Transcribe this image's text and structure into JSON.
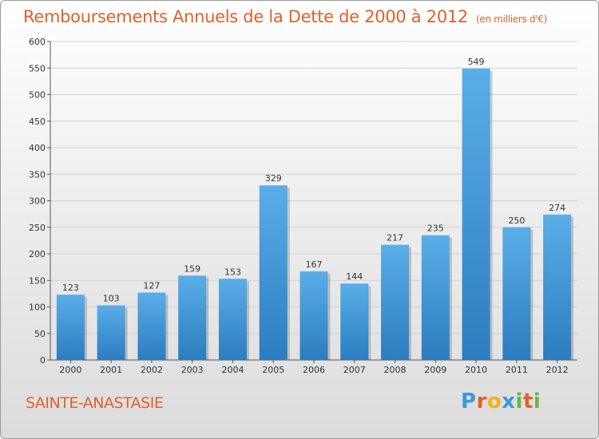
{
  "header": {
    "title": "Remboursements Annuels de la Dette de 2000 à 2012",
    "subtitle": "(en milliers d'€)"
  },
  "location": "SAINTE-ANASTASIE",
  "logo": {
    "text": "Proxiti",
    "letters": [
      {
        "ch": "P",
        "color": "#3a9ad9"
      },
      {
        "ch": "r",
        "color": "#e0612a"
      },
      {
        "ch": "o",
        "color": "#f0b419"
      },
      {
        "ch": "x",
        "color": "#3a9ad9"
      },
      {
        "ch": "i",
        "color": "#6cb33f"
      },
      {
        "ch": "t",
        "color": "#e0612a"
      },
      {
        "ch": "i",
        "color": "#6cb33f"
      }
    ]
  },
  "colors": {
    "bar_top": "#5aaee8",
    "bar_bottom": "#2b7dbf",
    "accent": "#e0612a",
    "grid": "#d0d0d0"
  },
  "chart_data": {
    "type": "bar",
    "categories": [
      "2000",
      "2001",
      "2002",
      "2003",
      "2004",
      "2005",
      "2006",
      "2007",
      "2008",
      "2009",
      "2010",
      "2011",
      "2012"
    ],
    "values": [
      123,
      103,
      127,
      159,
      153,
      329,
      167,
      144,
      217,
      235,
      549,
      250,
      274
    ],
    "ylim": [
      0,
      600
    ],
    "yticks": [
      0,
      50,
      100,
      150,
      200,
      250,
      300,
      350,
      400,
      450,
      500,
      550,
      600
    ],
    "grid": true,
    "legend": "none"
  }
}
